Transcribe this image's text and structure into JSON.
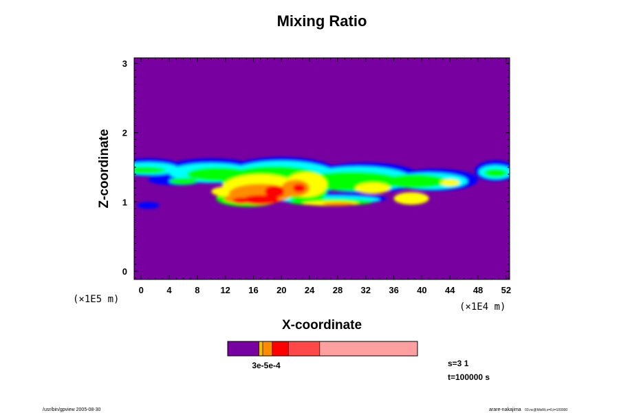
{
  "chart_data": {
    "type": "heatmap",
    "title": "Mixing Ratio",
    "xlabel": "X-coordinate",
    "ylabel": "Z-coordinate",
    "x_scale_label": "(×1E4 m)",
    "y_scale_label": "(×1E5 m)",
    "xlim": [
      -1,
      52.5
    ],
    "ylim": [
      -0.12,
      3.08
    ],
    "x_ticks": [
      "0",
      "4",
      "8",
      "12",
      "16",
      "20",
      "24",
      "28",
      "32",
      "36",
      "40",
      "44",
      "48",
      "52"
    ],
    "y_ticks": [
      "0",
      "1",
      "2",
      "3"
    ],
    "background_color": "#7800a0",
    "colorbar": {
      "label": "3e-5e-4",
      "colors": [
        "#7800a0",
        "#f0c000",
        "#ff8c00",
        "#ff0000",
        "#ff4848",
        "#ffa0a0"
      ],
      "fractions": [
        0.165,
        0.02,
        0.05,
        0.085,
        0.165,
        0.515
      ]
    },
    "cloud_band": {
      "z_range": [
        0.9,
        1.6
      ],
      "core_x_range": [
        12,
        26
      ],
      "peak_z": 1.05,
      "levels": [
        "#0000ff",
        "#00ffff",
        "#00ff00",
        "#ffff00",
        "#ff8c00",
        "#ff0000"
      ]
    },
    "annotations": {
      "step": "s=3 1",
      "time": "t=100000 s"
    }
  },
  "footer": {
    "left": "/usr/bin/gpview 2005-08-30",
    "right_main": "arare-nakajima",
    "right_sub": "03.nc@MixRt,x=0,t=100000"
  }
}
